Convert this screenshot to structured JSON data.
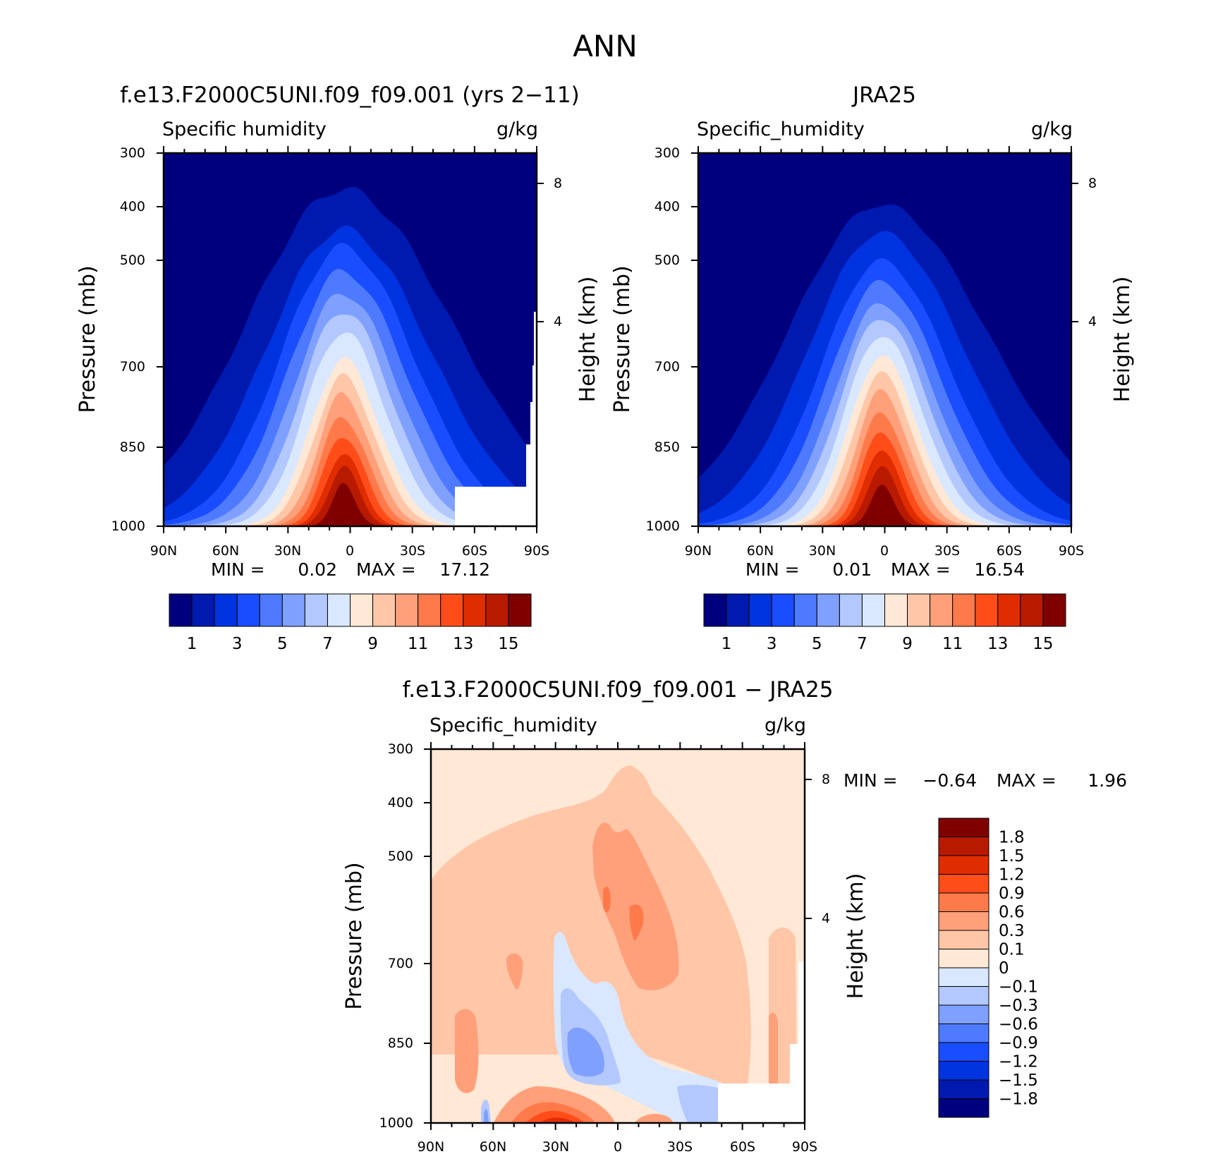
{
  "page_title": "ANN",
  "chart_data": [
    {
      "type": "contour",
      "title": "f.e13.F2000C5UNI.f09_f09.001 (yrs 2−11)",
      "variable": "Specific humidity",
      "units": "g/kg",
      "xlabel": "",
      "ylabel": "Pressure (mb)",
      "ylabel_right": "Height (km)",
      "x_ticks": [
        "90N",
        "60N",
        "30N",
        "0",
        "30S",
        "60S",
        "90S"
      ],
      "y_ticks": [
        "300",
        "400",
        "500",
        "700",
        "850",
        "1000"
      ],
      "y_ticks_right": [
        "8",
        "4"
      ],
      "min_label": "MIN =",
      "min_value": "0.02",
      "max_label": "MAX =",
      "max_value": "17.12",
      "levels": [
        1,
        2,
        3,
        4,
        5,
        6,
        7,
        8,
        9,
        10,
        11,
        12,
        13,
        14,
        15
      ],
      "colorbar_labels": [
        "1",
        "3",
        "5",
        "7",
        "9",
        "11",
        "13",
        "15"
      ],
      "colors": [
        "#00007f",
        "#001ab0",
        "#0033e0",
        "#1a4dff",
        "#4d7aff",
        "#80a0ff",
        "#b3c8ff",
        "#d9e8ff",
        "#ffe8d5",
        "#ffc6a8",
        "#ffa07a",
        "#ff7a4a",
        "#ff4d1a",
        "#e02d00",
        "#b81a00",
        "#800000"
      ]
    },
    {
      "type": "contour",
      "title": "JRA25",
      "variable": "Specific_humidity",
      "units": "g/kg",
      "xlabel": "",
      "ylabel": "Pressure (mb)",
      "ylabel_right": "Height (km)",
      "x_ticks": [
        "90N",
        "60N",
        "30N",
        "0",
        "30S",
        "60S",
        "90S"
      ],
      "y_ticks": [
        "300",
        "400",
        "500",
        "700",
        "850",
        "1000"
      ],
      "y_ticks_right": [
        "8",
        "4"
      ],
      "min_label": "MIN =",
      "min_value": "0.01",
      "max_label": "MAX =",
      "max_value": "16.54",
      "levels": [
        1,
        2,
        3,
        4,
        5,
        6,
        7,
        8,
        9,
        10,
        11,
        12,
        13,
        14,
        15
      ],
      "colorbar_labels": [
        "1",
        "3",
        "5",
        "7",
        "9",
        "11",
        "13",
        "15"
      ],
      "colors": [
        "#00007f",
        "#001ab0",
        "#0033e0",
        "#1a4dff",
        "#4d7aff",
        "#80a0ff",
        "#b3c8ff",
        "#d9e8ff",
        "#ffe8d5",
        "#ffc6a8",
        "#ffa07a",
        "#ff7a4a",
        "#ff4d1a",
        "#e02d00",
        "#b81a00",
        "#800000"
      ]
    },
    {
      "type": "contour",
      "title": "f.e13.F2000C5UNI.f09_f09.001 − JRA25",
      "variable": "Specific_humidity",
      "units": "g/kg",
      "xlabel": "",
      "ylabel": "Pressure (mb)",
      "ylabel_right": "Height (km)",
      "x_ticks": [
        "90N",
        "60N",
        "30N",
        "0",
        "30S",
        "60S",
        "90S"
      ],
      "y_ticks": [
        "300",
        "400",
        "500",
        "700",
        "850",
        "1000"
      ],
      "y_ticks_right": [
        "8",
        "4"
      ],
      "min_label": "MIN =",
      "min_value": "−0.64",
      "max_label": "MAX =",
      "max_value": "1.96",
      "levels": [
        -1.8,
        -1.5,
        -1.2,
        -0.9,
        -0.6,
        -0.3,
        -0.1,
        0,
        0.1,
        0.3,
        0.6,
        0.9,
        1.2,
        1.5,
        1.8
      ],
      "colorbar_labels": [
        "1.8",
        "1.5",
        "1.2",
        "0.9",
        "0.6",
        "0.3",
        "0.1",
        "0",
        "−0.1",
        "−0.3",
        "−0.6",
        "−0.9",
        "−1.2",
        "−1.5",
        "−1.8"
      ],
      "colors": [
        "#800000",
        "#b81a00",
        "#e02d00",
        "#ff4d1a",
        "#ff7a4a",
        "#ffa07a",
        "#ffc6a8",
        "#ffe8d5",
        "#d9e8ff",
        "#b3c8ff",
        "#80a0ff",
        "#4d7aff",
        "#1a4dff",
        "#0033e0",
        "#001ab0",
        "#00007f"
      ]
    }
  ]
}
